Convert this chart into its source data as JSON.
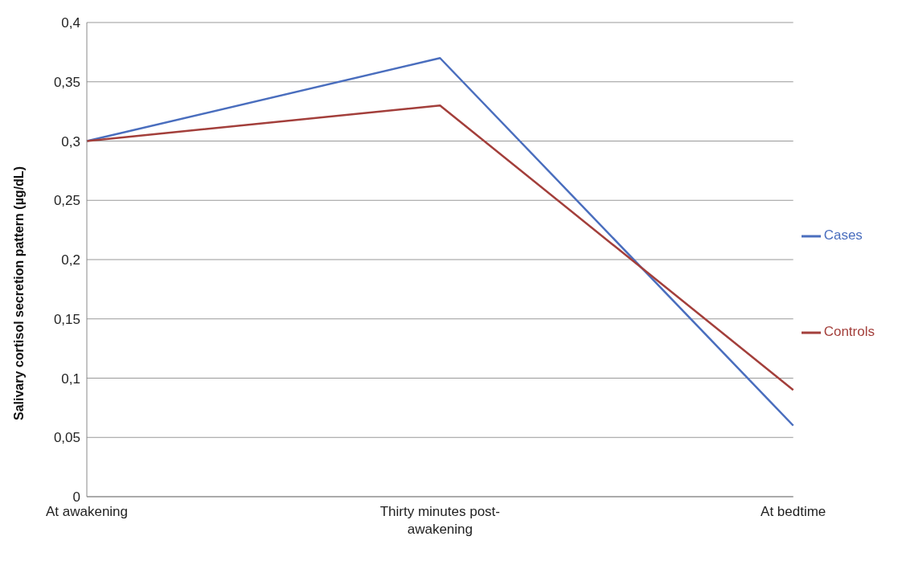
{
  "chart_data": {
    "type": "line",
    "ylabel": "Salivary cortisol secretion pattern (µg/dL)",
    "categories": [
      "At awakening",
      "Thirty minutes post-awakening",
      "At bedtime"
    ],
    "series": [
      {
        "name": "Cases",
        "color": "#4a6ebe",
        "values": [
          0.3,
          0.37,
          0.06
        ]
      },
      {
        "name": "Controls",
        "color": "#a33f3b",
        "values": [
          0.3,
          0.33,
          0.09
        ]
      }
    ],
    "ylim": [
      0,
      0.4
    ],
    "yticks": [
      {
        "value": 0,
        "label": "0"
      },
      {
        "value": 0.05,
        "label": "0,05"
      },
      {
        "value": 0.1,
        "label": "0,1"
      },
      {
        "value": 0.15,
        "label": "0,15"
      },
      {
        "value": 0.2,
        "label": "0,2"
      },
      {
        "value": 0.25,
        "label": "0,25"
      },
      {
        "value": 0.3,
        "label": "0,3"
      },
      {
        "value": 0.35,
        "label": "0,35"
      },
      {
        "value": 0.4,
        "label": "0,4"
      }
    ],
    "grid": "y",
    "legend": "right",
    "marker": "none",
    "line_style": "solid"
  }
}
